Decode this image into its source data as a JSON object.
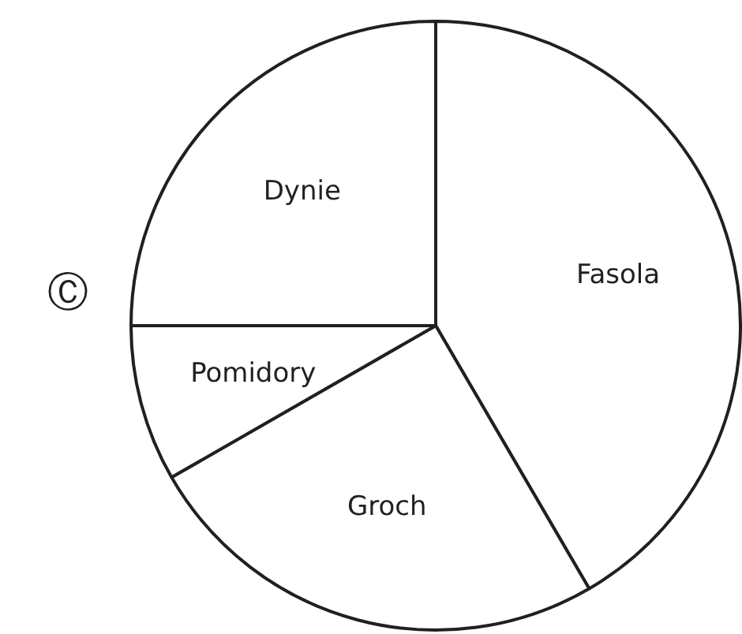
{
  "chart_data": {
    "type": "pie",
    "categories": [
      "Fasola",
      "Groch",
      "Pomidory",
      "Dynie"
    ],
    "values": [
      41.6,
      25.1,
      8.3,
      25
    ],
    "colors": [
      "#ffffff",
      "#ffffff",
      "#ffffff",
      "#ffffff"
    ],
    "legend": false,
    "annotations": [
      "Ⓒ"
    ]
  }
}
